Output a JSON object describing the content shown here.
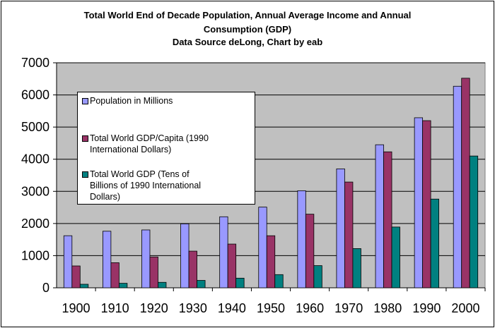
{
  "title_lines": [
    "Total World End of Decade Population, Annual Average Income and Annual",
    "Consumption (GDP)",
    "Data Source deLong, Chart by eab"
  ],
  "chart_data": {
    "type": "bar",
    "categories": [
      "1900",
      "1910",
      "1920",
      "1930",
      "1940",
      "1950",
      "1960",
      "1970",
      "1980",
      "1990",
      "2000"
    ],
    "ylim": [
      0,
      7000
    ],
    "yticks": [
      "0",
      "1000",
      "2000",
      "3000",
      "4000",
      "5000",
      "6000",
      "7000"
    ],
    "grid": true,
    "legend_position": "top-left",
    "series": [
      {
        "name": "Population in Millions",
        "color": "#9999ff",
        "values": [
          1620,
          1760,
          1800,
          1990,
          2210,
          2510,
          3020,
          3700,
          4450,
          5290,
          6270
        ]
      },
      {
        "name": "Total World GDP/Capita (1990 International Dollars)",
        "color": "#993366",
        "values": [
          680,
          780,
          960,
          1140,
          1360,
          1620,
          2290,
          3290,
          4230,
          5200,
          6520
        ]
      },
      {
        "name": "Total World GDP (Tens of Billions of 1990 International Dollars)",
        "color": "#008080",
        "values": [
          110,
          140,
          170,
          230,
          300,
          410,
          690,
          1220,
          1890,
          2760,
          4100
        ]
      }
    ]
  },
  "legend": {
    "items": [
      {
        "lines": [
          "Population in Millions"
        ]
      },
      {
        "lines": [
          "Total World GDP/Capita (1990",
          "International Dollars)"
        ]
      },
      {
        "lines": [
          "Total World GDP (Tens of",
          "Billions of 1990 International",
          "Dollars)"
        ]
      }
    ]
  }
}
